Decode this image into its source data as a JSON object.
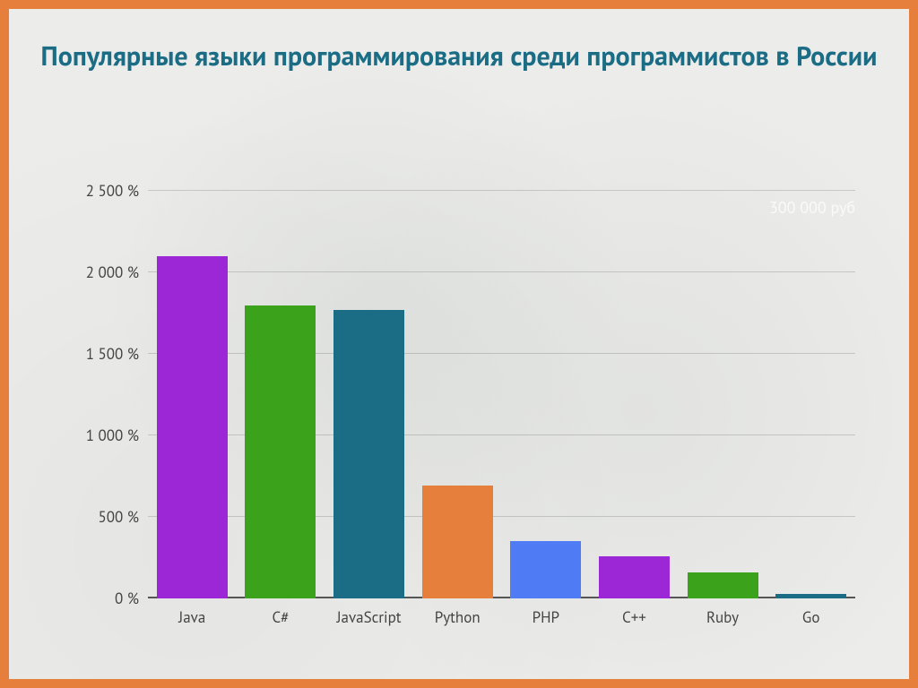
{
  "chart": {
    "type": "bar",
    "title": "Популярные языки программирования среди программистов в России",
    "title_color": "#1b6d86",
    "title_fontsize": 30,
    "annotation": "300 000 руб",
    "y_max": 2600,
    "y_ticks": [
      0,
      500,
      1000,
      1500,
      2000,
      2500
    ],
    "y_tick_labels": [
      "0 %",
      "500 %",
      "1 000 %",
      "1 500 %",
      "2 000 %",
      "2 500 %"
    ],
    "categories": [
      "Java",
      "C#",
      "JavaScript",
      "Python",
      "PHP",
      "C++",
      "Ruby",
      "Go"
    ],
    "values": [
      2100,
      1800,
      1770,
      690,
      350,
      260,
      160,
      30
    ],
    "bar_colors": [
      "#9b27d6",
      "#3aa21b",
      "#1b6d86",
      "#e67e3c",
      "#4f7cf5",
      "#9b27d6",
      "#3aa21b",
      "#1b6d86"
    ],
    "frame_border_color": "#e67e3c",
    "background_color": "#ececea",
    "grid_color": "rgba(0,0,0,0.15)",
    "label_color": "#444",
    "label_fontsize": 17,
    "bar_width_pct": 80
  }
}
